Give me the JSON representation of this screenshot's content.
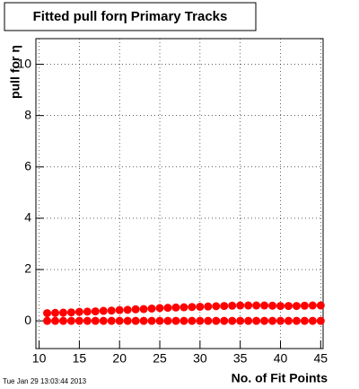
{
  "chart_data": {
    "type": "scatter",
    "title": "Fitted pull forη Primary Tracks",
    "y_label": "pull for η",
    "x_label": "No. of Fit Points",
    "timestamp": "Tue Jan 29 13:03:44 2013",
    "x": [
      11,
      12,
      13,
      14,
      15,
      16,
      17,
      18,
      19,
      20,
      21,
      22,
      23,
      24,
      25,
      26,
      27,
      28,
      29,
      30,
      31,
      32,
      33,
      34,
      35,
      36,
      37,
      38,
      39,
      40,
      41,
      42,
      43,
      44,
      45
    ],
    "series": [
      {
        "color": "#ff0000",
        "values": [
          0.3,
          0.31,
          0.32,
          0.33,
          0.35,
          0.36,
          0.37,
          0.39,
          0.4,
          0.42,
          0.43,
          0.45,
          0.46,
          0.48,
          0.5,
          0.51,
          0.52,
          0.53,
          0.54,
          0.55,
          0.56,
          0.57,
          0.58,
          0.59,
          0.6,
          0.6,
          0.6,
          0.6,
          0.59,
          0.58,
          0.58,
          0.58,
          0.59,
          0.6,
          0.6
        ]
      },
      {
        "color": "#ff0000",
        "values": [
          0,
          0,
          0,
          0,
          0,
          0,
          0,
          0,
          0,
          0,
          0,
          0,
          0,
          0,
          0,
          0,
          0,
          0,
          0,
          0,
          0,
          0,
          0,
          0,
          0,
          0,
          0,
          0,
          0,
          0,
          0,
          0,
          0,
          0,
          0
        ]
      }
    ],
    "xlim": [
      9.6,
      45.3
    ],
    "xticks": [
      10,
      15,
      20,
      25,
      30,
      35,
      40,
      45
    ],
    "ylim": [
      -1.08,
      11
    ],
    "yticks": [
      0,
      2,
      4,
      6,
      8,
      10
    ],
    "grid": true
  }
}
